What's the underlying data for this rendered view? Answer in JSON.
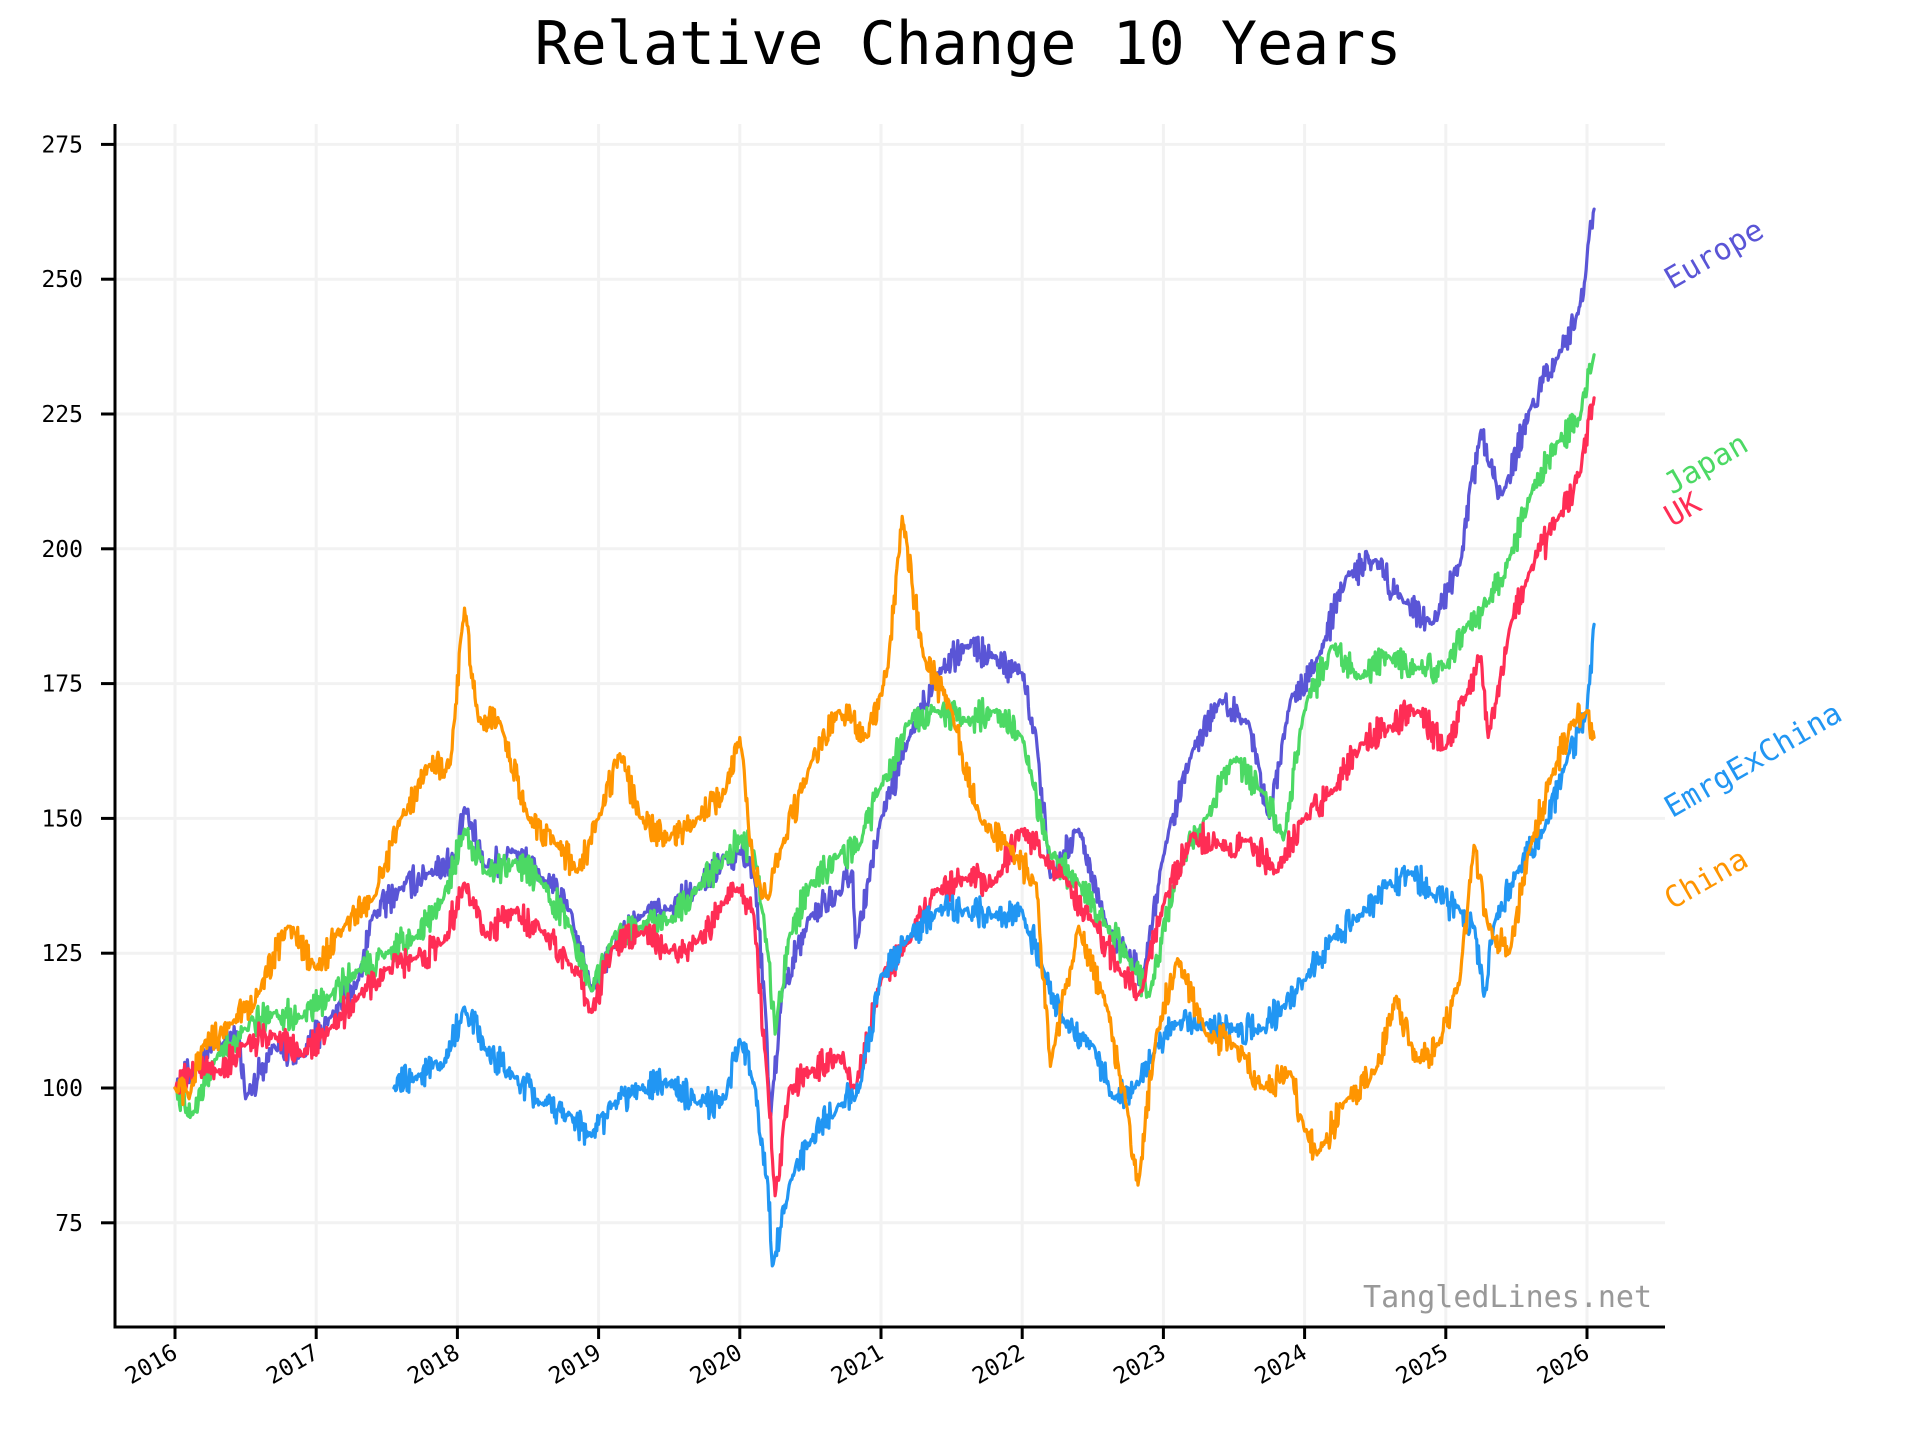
{
  "chart_data": {
    "type": "line",
    "title": "Relative Change 10 Years",
    "xlabel": "",
    "ylabel": "",
    "xlim": [
      2015.6,
      2026.6
    ],
    "ylim": [
      57,
      279
    ],
    "grid": true,
    "legend": "inline-right-labels",
    "x_ticks": [
      "2016",
      "2017",
      "2018",
      "2019",
      "2020",
      "2021",
      "2022",
      "2023",
      "2024",
      "2025",
      "2026"
    ],
    "y_ticks": [
      "75",
      "100",
      "125",
      "150",
      "175",
      "200",
      "225",
      "250",
      "275"
    ],
    "watermark": "TangledLines.net",
    "series": [
      {
        "name": "Europe",
        "color": "#5a55d6",
        "x": [
          2016.0,
          2016.15,
          2016.3,
          2016.45,
          2016.5,
          2016.7,
          2016.9,
          2017.1,
          2017.3,
          2017.4,
          2017.6,
          2017.8,
          2018.0,
          2018.05,
          2018.2,
          2018.4,
          2018.6,
          2018.8,
          2018.95,
          2019.1,
          2019.3,
          2019.5,
          2019.7,
          2019.9,
          2020.0,
          2020.1,
          2020.18,
          2020.22,
          2020.3,
          2020.5,
          2020.7,
          2020.8,
          2020.82,
          2021.0,
          2021.2,
          2021.4,
          2021.6,
          2021.8,
          2022.0,
          2022.1,
          2022.2,
          2022.4,
          2022.6,
          2022.75,
          2022.85,
          2023.0,
          2023.2,
          2023.4,
          2023.6,
          2023.75,
          2023.9,
          2024.1,
          2024.3,
          2024.5,
          2024.7,
          2024.9,
          2025.1,
          2025.25,
          2025.3,
          2025.4,
          2025.6,
          2025.8,
          2025.95,
          2026.0,
          2026.05
        ],
        "y": [
          100,
          104,
          108,
          110,
          98,
          108,
          106,
          113,
          120,
          132,
          137,
          140,
          143,
          152,
          141,
          144,
          139,
          133,
          118,
          126,
          132,
          133,
          137,
          143,
          144,
          140,
          115,
          95,
          118,
          132,
          136,
          140,
          126,
          150,
          165,
          177,
          182,
          180,
          177,
          165,
          139,
          148,
          130,
          125,
          120,
          143,
          162,
          172,
          168,
          150,
          172,
          180,
          195,
          198,
          190,
          186,
          197,
          222,
          216,
          210,
          226,
          236,
          245,
          254,
          263
        ]
      },
      {
        "name": "Japan",
        "color": "#4cd964",
        "x": [
          2016.0,
          2016.12,
          2016.3,
          2016.5,
          2016.7,
          2016.9,
          2017.1,
          2017.3,
          2017.5,
          2017.7,
          2017.9,
          2018.05,
          2018.2,
          2018.4,
          2018.6,
          2018.8,
          2018.95,
          2019.1,
          2019.3,
          2019.5,
          2019.7,
          2019.9,
          2020.0,
          2020.1,
          2020.2,
          2020.25,
          2020.35,
          2020.5,
          2020.7,
          2020.85,
          2021.0,
          2021.2,
          2021.4,
          2021.6,
          2021.8,
          2022.0,
          2022.2,
          2022.4,
          2022.6,
          2022.75,
          2022.9,
          2023.1,
          2023.3,
          2023.5,
          2023.7,
          2023.85,
          2024.0,
          2024.2,
          2024.4,
          2024.6,
          2024.8,
          2025.0,
          2025.15,
          2025.3,
          2025.45,
          2025.6,
          2025.8,
          2025.95,
          2026.05
        ],
        "y": [
          100,
          95,
          106,
          111,
          114,
          113,
          117,
          122,
          125,
          128,
          135,
          148,
          140,
          142,
          138,
          130,
          118,
          128,
          130,
          131,
          137,
          143,
          146,
          144,
          125,
          110,
          128,
          138,
          143,
          145,
          156,
          168,
          170,
          168,
          170,
          165,
          143,
          138,
          130,
          124,
          117,
          140,
          150,
          161,
          155,
          146,
          170,
          182,
          176,
          180,
          178,
          178,
          186,
          190,
          198,
          210,
          220,
          224,
          236
        ]
      },
      {
        "name": "UK",
        "color": "#ff2d55",
        "x": [
          2016.0,
          2016.15,
          2016.3,
          2016.5,
          2016.7,
          2016.9,
          2017.1,
          2017.3,
          2017.5,
          2017.7,
          2017.9,
          2018.05,
          2018.2,
          2018.4,
          2018.6,
          2018.8,
          2018.95,
          2019.1,
          2019.3,
          2019.5,
          2019.7,
          2019.9,
          2020.0,
          2020.1,
          2020.2,
          2020.25,
          2020.35,
          2020.5,
          2020.7,
          2020.82,
          2021.0,
          2021.2,
          2021.4,
          2021.6,
          2021.8,
          2022.0,
          2022.15,
          2022.3,
          2022.5,
          2022.7,
          2022.85,
          2023.0,
          2023.2,
          2023.4,
          2023.6,
          2023.8,
          2024.0,
          2024.2,
          2024.4,
          2024.6,
          2024.8,
          2025.0,
          2025.15,
          2025.25,
          2025.3,
          2025.45,
          2025.6,
          2025.8,
          2025.95,
          2026.05
        ],
        "y": [
          100,
          104,
          103,
          108,
          110,
          106,
          111,
          117,
          122,
          124,
          127,
          138,
          128,
          133,
          129,
          123,
          114,
          126,
          129,
          125,
          127,
          135,
          137,
          132,
          100,
          80,
          100,
          103,
          106,
          100,
          120,
          127,
          137,
          139,
          138,
          148,
          143,
          139,
          131,
          121,
          118,
          134,
          147,
          145,
          146,
          140,
          150,
          155,
          164,
          167,
          170,
          163,
          173,
          180,
          165,
          185,
          196,
          206,
          214,
          228
        ]
      },
      {
        "name": "EmrgExChina",
        "color": "#2196f3",
        "x": [
          2017.55,
          2017.7,
          2017.9,
          2018.05,
          2018.2,
          2018.4,
          2018.6,
          2018.8,
          2018.95,
          2019.1,
          2019.3,
          2019.5,
          2019.7,
          2019.9,
          2020.0,
          2020.1,
          2020.2,
          2020.23,
          2020.35,
          2020.5,
          2020.7,
          2020.85,
          2021.0,
          2021.2,
          2021.4,
          2021.6,
          2021.8,
          2022.0,
          2022.15,
          2022.3,
          2022.5,
          2022.65,
          2022.8,
          2022.95,
          2023.1,
          2023.3,
          2023.5,
          2023.7,
          2023.85,
          2024.0,
          2024.2,
          2024.4,
          2024.6,
          2024.75,
          2024.9,
          2025.1,
          2025.2,
          2025.27,
          2025.35,
          2025.5,
          2025.7,
          2025.85,
          2026.0,
          2026.05
        ],
        "y": [
          100,
          102,
          104,
          115,
          107,
          102,
          97,
          95,
          91,
          97,
          100,
          101,
          97,
          98,
          109,
          101,
          82,
          67,
          82,
          90,
          97,
          100,
          121,
          128,
          133,
          133,
          132,
          133,
          122,
          112,
          108,
          98,
          100,
          108,
          112,
          112,
          111,
          111,
          115,
          120,
          128,
          132,
          138,
          140,
          136,
          133,
          130,
          117,
          131,
          140,
          148,
          160,
          170,
          186
        ]
      },
      {
        "name": "China",
        "color": "#ff9500",
        "x": [
          2016.0,
          2016.1,
          2016.2,
          2016.4,
          2016.6,
          2016.8,
          2017.0,
          2017.2,
          2017.4,
          2017.6,
          2017.8,
          2017.95,
          2018.05,
          2018.15,
          2018.3,
          2018.5,
          2018.7,
          2018.85,
          2019.0,
          2019.15,
          2019.3,
          2019.5,
          2019.7,
          2019.9,
          2020.0,
          2020.1,
          2020.2,
          2020.3,
          2020.5,
          2020.7,
          2020.9,
          2021.05,
          2021.15,
          2021.3,
          2021.5,
          2021.7,
          2021.9,
          2022.1,
          2022.2,
          2022.4,
          2022.6,
          2022.75,
          2022.82,
          2022.95,
          2023.1,
          2023.3,
          2023.5,
          2023.7,
          2023.9,
          2024.0,
          2024.1,
          2024.3,
          2024.5,
          2024.65,
          2024.75,
          2024.8,
          2024.95,
          2025.1,
          2025.2,
          2025.3,
          2025.45,
          2025.6,
          2025.75,
          2025.9,
          2026.0,
          2026.05
        ],
        "y": [
          100,
          98,
          108,
          112,
          118,
          130,
          122,
          130,
          135,
          150,
          160,
          160,
          189,
          168,
          168,
          150,
          145,
          140,
          150,
          162,
          150,
          146,
          150,
          155,
          165,
          140,
          135,
          145,
          160,
          170,
          165,
          178,
          206,
          180,
          170,
          150,
          145,
          138,
          104,
          130,
          115,
          95,
          82,
          110,
          124,
          110,
          108,
          100,
          103,
          92,
          88,
          98,
          103,
          117,
          108,
          105,
          108,
          120,
          145,
          130,
          125,
          145,
          158,
          168,
          170,
          165
        ]
      }
    ]
  }
}
